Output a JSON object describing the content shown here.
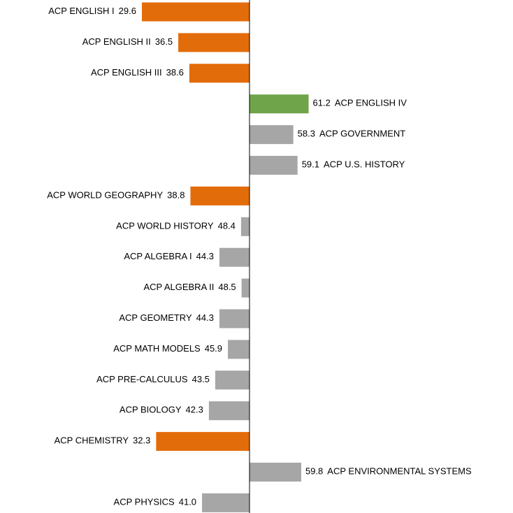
{
  "chart_data": {
    "type": "bar",
    "orientation": "horizontal",
    "categories": [
      "ACP ENGLISH I",
      "ACP ENGLISH II",
      "ACP ENGLISH III",
      "ACP ENGLISH IV",
      "ACP GOVERNMENT",
      "ACP U.S. HISTORY",
      "ACP WORLD GEOGRAPHY",
      "ACP WORLD HISTORY",
      "ACP ALGEBRA I",
      "ACP ALGEBRA II",
      "ACP GEOMETRY",
      "ACP MATH MODELS",
      "ACP PRE-CALCULUS",
      "ACP BIOLOGY",
      "ACP CHEMISTRY",
      "ACP ENVIRONMENTAL SYSTEMS",
      "ACP PHYSICS"
    ],
    "values": [
      29.6,
      36.5,
      38.6,
      61.2,
      58.3,
      59.1,
      38.8,
      48.4,
      44.3,
      48.5,
      44.3,
      45.9,
      43.5,
      42.3,
      32.3,
      59.8,
      41.0
    ],
    "value_labels": [
      "29.6",
      "36.5",
      "38.6",
      "61.2",
      "58.3",
      "59.1",
      "38.8",
      "48.4",
      "44.3",
      "48.5",
      "44.3",
      "45.9",
      "43.5",
      "42.3",
      "32.3",
      "59.8",
      "41.0"
    ],
    "colors": [
      "#e36c0a",
      "#e36c0a",
      "#e36c0a",
      "#70a44a",
      "#a6a6a6",
      "#a6a6a6",
      "#e36c0a",
      "#a6a6a6",
      "#a6a6a6",
      "#a6a6a6",
      "#a6a6a6",
      "#a6a6a6",
      "#a6a6a6",
      "#a6a6a6",
      "#e36c0a",
      "#a6a6a6",
      "#a6a6a6"
    ],
    "xlim": [
      0,
      100
    ],
    "baseline": 50
  }
}
